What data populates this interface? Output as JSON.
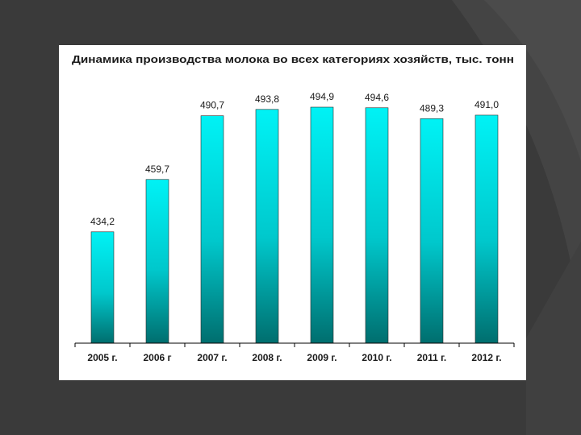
{
  "colors": {
    "background": "#3a3a3a",
    "bar_top": "#00f2f5",
    "bar_bottom": "#006e6e",
    "axis": "#000000"
  },
  "chart_data": {
    "type": "bar",
    "title": "Динамика производства молока во всех категориях хозяйств, тыс. тонн",
    "categories": [
      "2005 г.",
      "2006 г",
      "2007 г.",
      "2008 г.",
      "2009 г.",
      "2010 г.",
      "2011 г.",
      "2012 г."
    ],
    "values": [
      434.2,
      459.7,
      490.7,
      493.8,
      494.9,
      494.6,
      489.3,
      491.0
    ],
    "data_labels": [
      "434,2",
      "459,7",
      "490,7",
      "493,8",
      "494,9",
      "494,6",
      "489,3",
      "491,0"
    ],
    "xlabel": "",
    "ylabel": "",
    "ylim": [
      380,
      500
    ],
    "grid": false,
    "legend": "none"
  }
}
